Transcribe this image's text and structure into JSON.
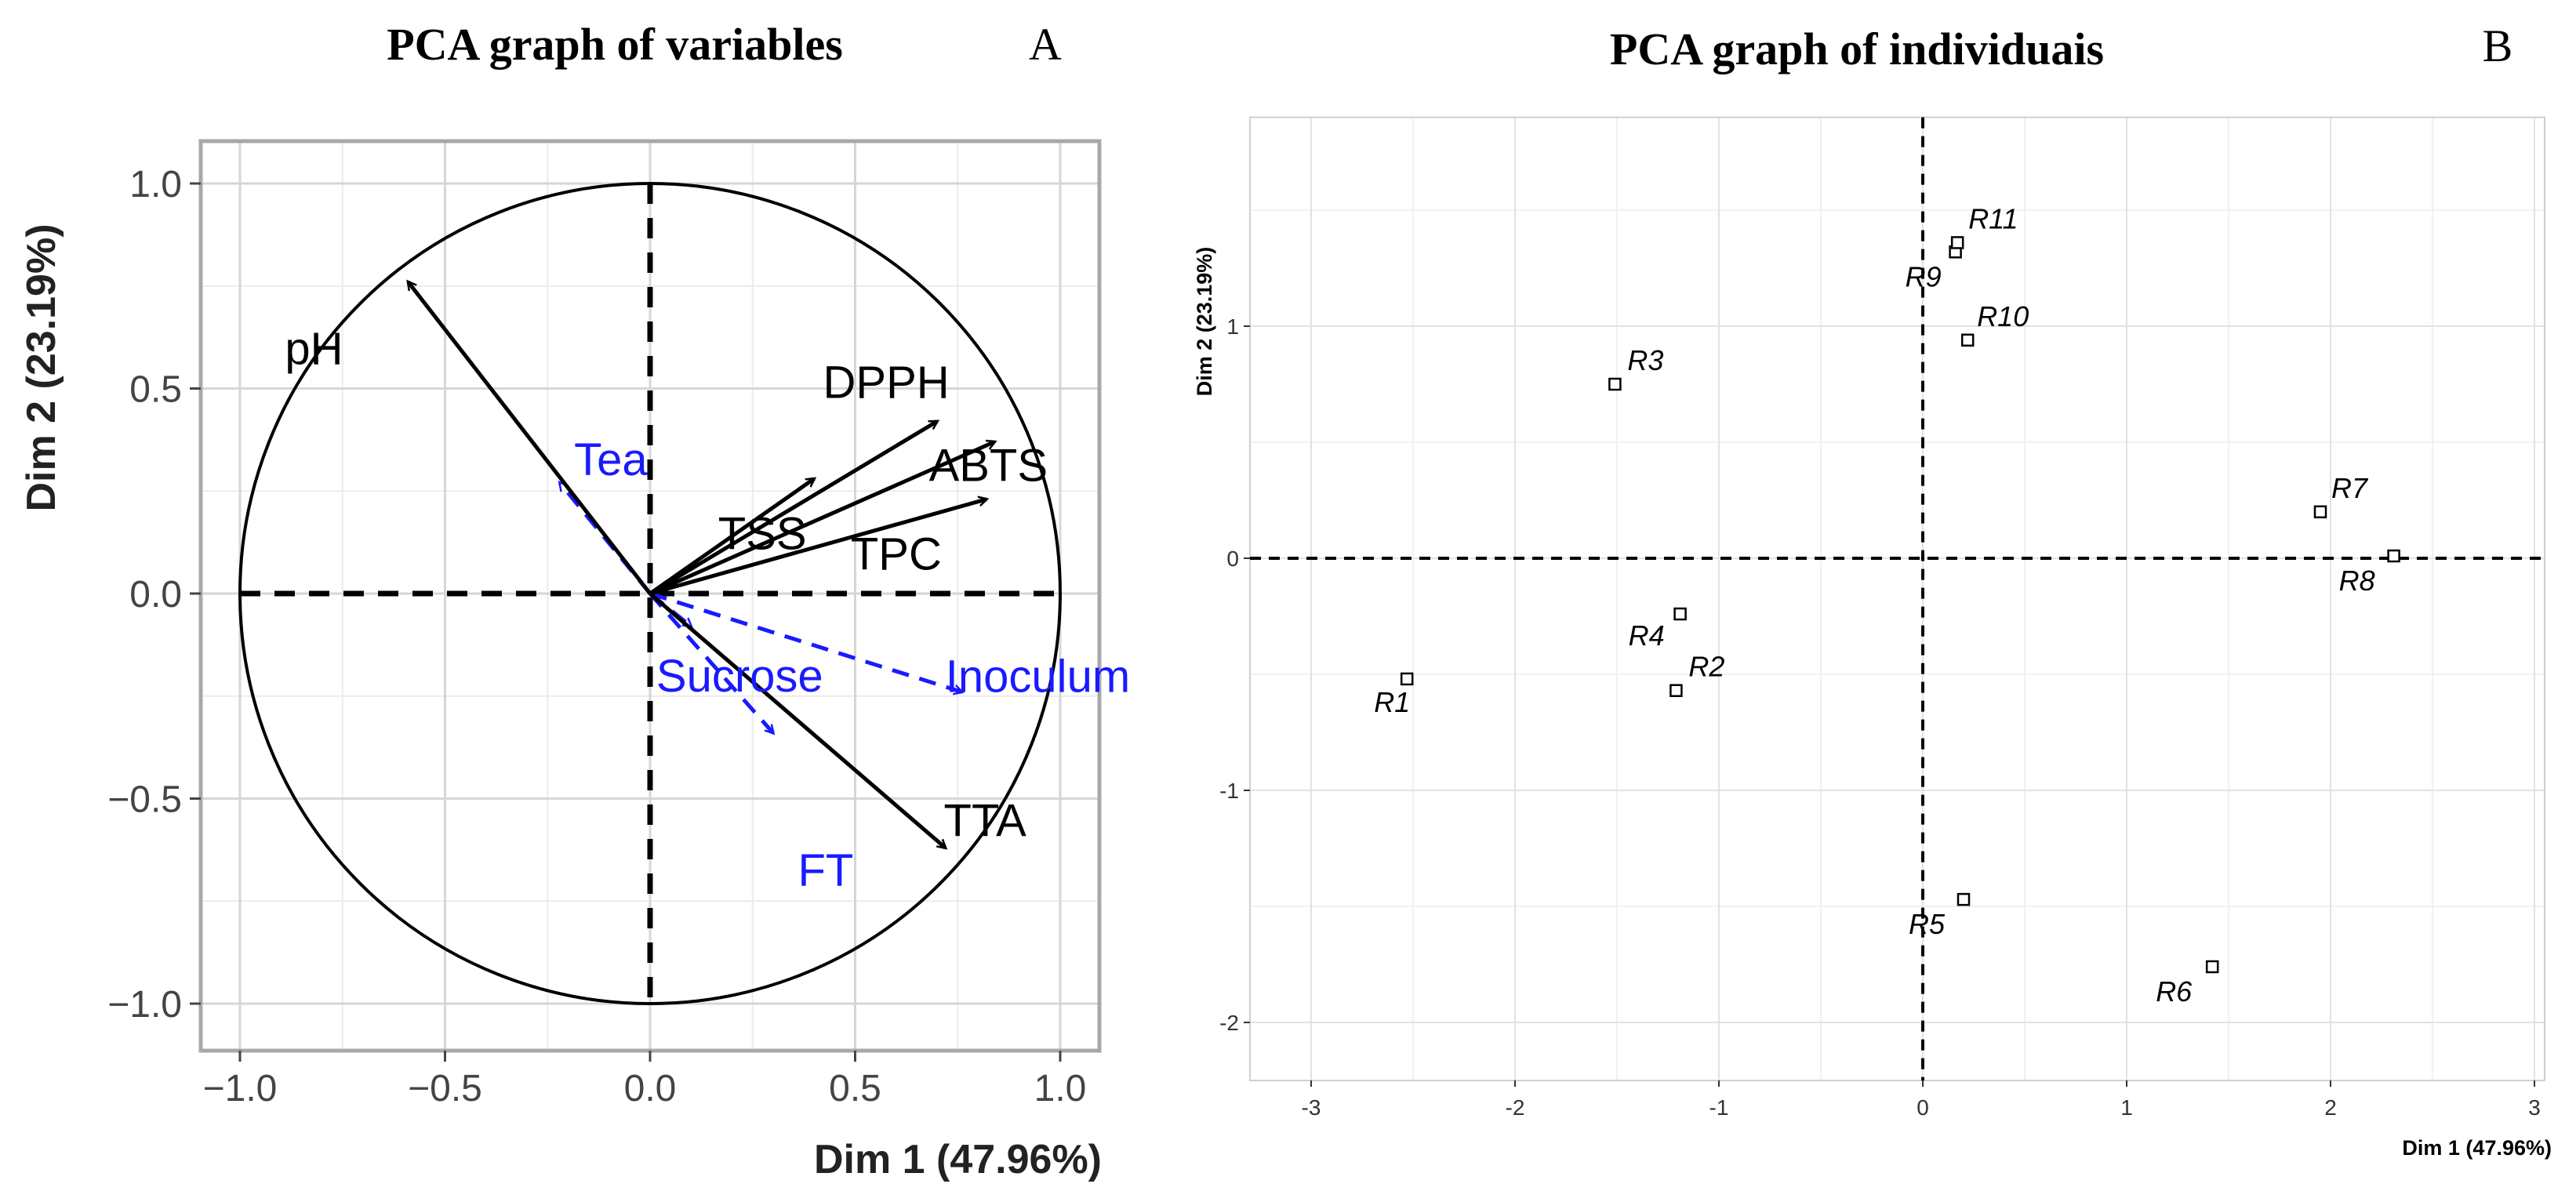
{
  "chart_data": [
    {
      "type": "scatter",
      "subtype": "pca-variables-correlation-circle",
      "title": "PCA graph of variables",
      "panel_label": "A",
      "xlabel": "Dim 1 (47.96%)",
      "ylabel": "Dim 2 (23.19%)",
      "xlim": [
        -1.0,
        1.0
      ],
      "ylim": [
        -1.0,
        1.0
      ],
      "xticks": [
        "−1.0",
        "−0.5",
        "0.0",
        "0.5",
        "1.0"
      ],
      "yticks": [
        "−1.0",
        "−0.5",
        "0.0",
        "0.5",
        "1.0"
      ],
      "grid": true,
      "active_color": "#000000",
      "supplementary_color": "#1a1aff",
      "active_variables": [
        {
          "name": "pH",
          "x": -0.59,
          "y": 0.76
        },
        {
          "name": "DPPH",
          "x": 0.7,
          "y": 0.42
        },
        {
          "name": "ABTS",
          "x": 0.84,
          "y": 0.37
        },
        {
          "name": "TSS",
          "x": 0.4,
          "y": 0.28
        },
        {
          "name": "TPC",
          "x": 0.82,
          "y": 0.23
        },
        {
          "name": "TTA",
          "x": 0.72,
          "y": -0.62
        }
      ],
      "supplementary_variables": [
        {
          "name": "Tea",
          "x": -0.22,
          "y": 0.27
        },
        {
          "name": "Sucrose",
          "x": 0.1,
          "y": -0.08
        },
        {
          "name": "Inoculum",
          "x": 0.76,
          "y": -0.24
        },
        {
          "name": "FT",
          "x": 0.3,
          "y": -0.34
        }
      ]
    },
    {
      "type": "scatter",
      "subtype": "pca-individuals",
      "title": "PCA graph of individuais",
      "panel_label": "B",
      "xlabel": "Dim 1 (47.96%)",
      "ylabel": "Dim 2 (23.19%)",
      "xlim": [
        -3.3,
        3.05
      ],
      "ylim": [
        -2.25,
        1.9
      ],
      "xticks": [
        "-3",
        "-2",
        "-1",
        "0",
        "1",
        "2",
        "3"
      ],
      "yticks": [
        "-2",
        "-1",
        "0",
        "1"
      ],
      "grid": true,
      "points": [
        {
          "name": "R1",
          "x": -2.53,
          "y": -0.52
        },
        {
          "name": "R2",
          "x": -1.21,
          "y": -0.57
        },
        {
          "name": "R3",
          "x": -1.51,
          "y": 0.75
        },
        {
          "name": "R4",
          "x": -1.19,
          "y": -0.24
        },
        {
          "name": "R5",
          "x": 0.2,
          "y": -1.47
        },
        {
          "name": "R6",
          "x": 1.42,
          "y": -1.76
        },
        {
          "name": "R7",
          "x": 1.95,
          "y": 0.2
        },
        {
          "name": "R8",
          "x": 2.31,
          "y": 0.01
        },
        {
          "name": "R9",
          "x": 0.16,
          "y": 1.32
        },
        {
          "name": "R10",
          "x": 0.22,
          "y": 0.94
        },
        {
          "name": "R11",
          "x": 0.17,
          "y": 1.36
        }
      ]
    }
  ]
}
